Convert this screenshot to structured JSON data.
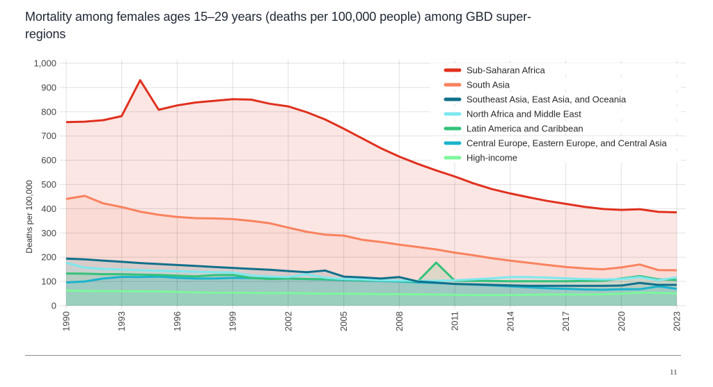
{
  "page": {
    "title": "Mortality among females ages 15–29 years (deaths per 100,000 people) among GBD super-regions",
    "page_number": "11"
  },
  "chart_data": {
    "type": "area",
    "title": "Mortality among females ages 15–29 years (deaths per 100,000 people) among GBD super-regions",
    "xlabel": "",
    "ylabel": "Deaths per 100,000",
    "xlim": [
      1990,
      2023
    ],
    "ylim": [
      0,
      1000
    ],
    "x_ticks": [
      1990,
      1993,
      1996,
      1999,
      2002,
      2005,
      2008,
      2011,
      2014,
      2017,
      2020,
      2023
    ],
    "y_ticks": [
      0,
      100,
      200,
      300,
      400,
      500,
      600,
      700,
      800,
      900,
      1000
    ],
    "y_tick_labels": [
      "0",
      "100",
      "200",
      "300",
      "400",
      "500",
      "600",
      "700",
      "800",
      "900",
      "1,000"
    ],
    "grid": true,
    "legend_position": "top-right",
    "x": [
      1990,
      1991,
      1992,
      1993,
      1994,
      1995,
      1996,
      1997,
      1998,
      1999,
      2000,
      2001,
      2002,
      2003,
      2004,
      2005,
      2006,
      2007,
      2008,
      2009,
      2010,
      2011,
      2012,
      2013,
      2014,
      2015,
      2016,
      2017,
      2018,
      2019,
      2020,
      2021,
      2022,
      2023
    ],
    "series": [
      {
        "name": "Sub-Saharan Africa",
        "color": "#e0301e",
        "fill": "#f9d9d9",
        "values": [
          757,
          759,
          765,
          782,
          930,
          808,
          826,
          838,
          845,
          852,
          850,
          833,
          822,
          798,
          768,
          730,
          690,
          650,
          615,
          585,
          558,
          533,
          505,
          481,
          463,
          447,
          432,
          420,
          408,
          399,
          395,
          398,
          387,
          385
        ]
      },
      {
        "name": "South Asia",
        "color": "#f9825e",
        "fill": "#f8cfc6",
        "values": [
          440,
          453,
          422,
          407,
          388,
          375,
          366,
          361,
          360,
          357,
          350,
          340,
          322,
          305,
          293,
          289,
          272,
          263,
          252,
          242,
          232,
          219,
          208,
          196,
          186,
          177,
          168,
          160,
          154,
          150,
          158,
          170,
          147,
          146
        ]
      },
      {
        "name": "Southeast Asia, East Asia, and Oceania",
        "color": "#11708a",
        "fill": "#b9c7c4",
        "values": [
          194,
          191,
          186,
          181,
          176,
          172,
          168,
          164,
          160,
          156,
          152,
          148,
          143,
          138,
          145,
          120,
          117,
          112,
          118,
          100,
          95,
          90,
          88,
          86,
          84,
          82,
          82,
          82,
          82,
          82,
          83,
          94,
          86,
          86
        ]
      },
      {
        "name": "North Africa and Middle East",
        "color": "#7ee8ee",
        "fill": "#c4dfe0",
        "values": [
          178,
          157,
          152,
          149,
          147,
          144,
          142,
          140,
          138,
          137,
          125,
          120,
          118,
          130,
          115,
          110,
          108,
          105,
          104,
          103,
          103,
          105,
          109,
          113,
          118,
          118,
          116,
          113,
          110,
          108,
          110,
          118,
          105,
          117
        ]
      },
      {
        "name": "Latin America and Caribbean",
        "color": "#33c27a",
        "fill": "#bdd3c5",
        "values": [
          133,
          132,
          130,
          130,
          128,
          127,
          124,
          121,
          126,
          127,
          115,
          110,
          112,
          110,
          109,
          108,
          105,
          104,
          102,
          100,
          178,
          103,
          103,
          102,
          101,
          101,
          101,
          101,
          102,
          103,
          112,
          122,
          109,
          106
        ]
      },
      {
        "name": "Central Europe, Eastern Europe, and Central Asia",
        "color": "#1ab3cc",
        "fill": "#b3c8c4",
        "values": [
          96,
          100,
          112,
          119,
          118,
          120,
          115,
          112,
          112,
          115,
          114,
          112,
          112,
          110,
          108,
          106,
          104,
          102,
          100,
          96,
          94,
          90,
          87,
          84,
          80,
          76,
          72,
          70,
          67,
          66,
          68,
          68,
          80,
          70
        ]
      },
      {
        "name": "High-income",
        "color": "#7ef79c",
        "fill": "#b1c6b6",
        "values": [
          63,
          61,
          60,
          60,
          59,
          59,
          57,
          55,
          54,
          54,
          53,
          52,
          52,
          51,
          50,
          50,
          49,
          48,
          48,
          47,
          46,
          45,
          44,
          44,
          44,
          45,
          46,
          46,
          46,
          47,
          50,
          54,
          53,
          51
        ]
      }
    ]
  }
}
